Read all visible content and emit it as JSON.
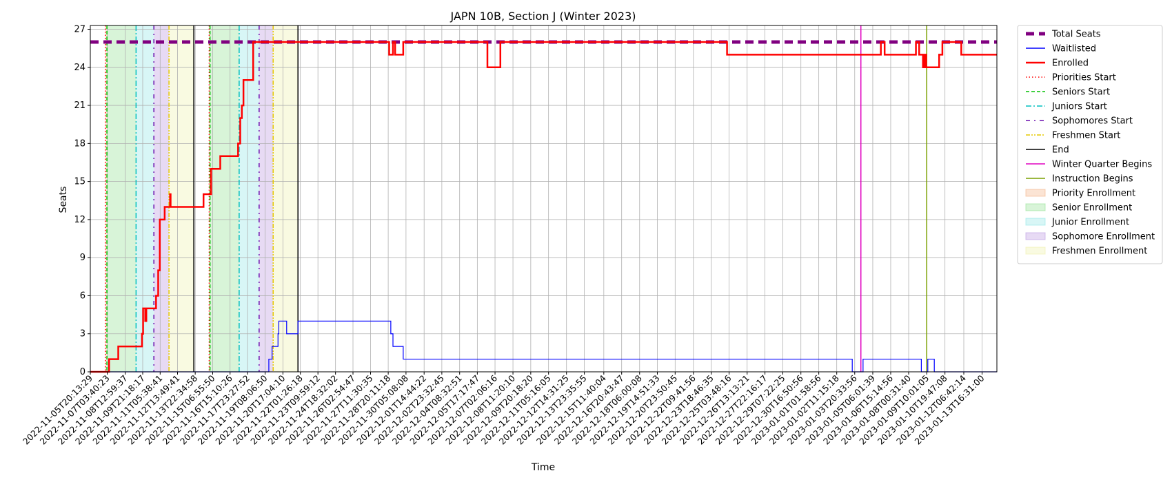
{
  "chart_data": {
    "type": "line",
    "title": "JAPN 10B, Section J (Winter 2023)",
    "xlabel": "Time",
    "ylabel": "Seats",
    "ylim": [
      0,
      27.3
    ],
    "yticks": [
      0,
      3,
      6,
      9,
      12,
      15,
      18,
      21,
      24,
      27
    ],
    "grid": true,
    "legend_position": "outside-right",
    "x_range": [
      "2022-11-05T20:13:29",
      "2023-01-14T20:00:00"
    ],
    "xtick_labels": [
      "2022-11-05T20:13:29",
      "2022-11-07T03:40:23",
      "2022-11-08T12:59:37",
      "2022-11-09T21:18:17",
      "2022-11-11T05:38:41",
      "2022-11-12T13:49:41",
      "2022-11-13T22:34:58",
      "2022-11-15T06:55:50",
      "2022-11-16T15:10:26",
      "2022-11-17T23:27:52",
      "2022-11-19T08:06:50",
      "2022-11-20T17:04:10",
      "2022-11-22T01:26:18",
      "2022-11-23T09:59:12",
      "2022-11-24T18:32:02",
      "2022-11-26T02:54:47",
      "2022-11-27T11:30:35",
      "2022-11-28T20:11:18",
      "2022-11-30T05:08:08",
      "2022-12-01T14:44:22",
      "2022-12-02T23:32:45",
      "2022-12-04T08:32:51",
      "2022-12-05T17:17:47",
      "2022-12-07T02:06:16",
      "2022-12-08T11:20:10",
      "2022-12-09T20:18:20",
      "2022-12-11T05:16:05",
      "2022-12-12T14:31:25",
      "2022-12-13T23:35:55",
      "2022-12-15T11:40:04",
      "2022-12-16T20:43:47",
      "2022-12-18T06:00:08",
      "2022-12-19T14:51:33",
      "2022-12-20T23:50:45",
      "2022-12-22T09:41:56",
      "2022-12-23T18:46:35",
      "2022-12-25T03:48:16",
      "2022-12-26T13:13:21",
      "2022-12-27T22:16:17",
      "2022-12-29T07:22:25",
      "2022-12-30T16:50:56",
      "2023-01-01T01:58:56",
      "2023-01-02T11:15:18",
      "2023-01-03T20:33:56",
      "2023-01-05T06:01:39",
      "2023-01-06T15:14:56",
      "2023-01-08T00:31:40",
      "2023-01-09T10:01:05",
      "2023-01-10T19:47:08",
      "2023-01-12T06:42:14",
      "2023-01-13T16:31:00"
    ],
    "series": [
      {
        "name": "Total Seats",
        "color": "#800080",
        "style": "dashed-thick",
        "x": [
          "2022-11-05T20:13:29",
          "2023-01-14T20:00:00"
        ],
        "y": [
          26,
          26
        ]
      },
      {
        "name": "Waitlisted",
        "color": "#0000ff",
        "style": "solid",
        "x": [
          "2022-11-05T20:13:29",
          "2022-11-19T14:00:00",
          "2022-11-19T15:00:00",
          "2022-11-19T21:00:00",
          "2022-11-20T00:00:00",
          "2022-11-20T08:00:00",
          "2022-11-20T08:30:00",
          "2022-11-20T09:30:00",
          "2022-11-21T00:00:00",
          "2022-11-21T00:30:00",
          "2022-11-21T21:00:00",
          "2022-11-21T22:00:00",
          "2022-11-29T01:00:00",
          "2022-11-29T05:00:00",
          "2022-11-30T00:00:00",
          "2023-01-03T04:00:00",
          "2023-01-03T16:00:00",
          "2023-01-04T00:00:00",
          "2023-01-04T12:00:00",
          "2023-01-08T21:00:00",
          "2023-01-09T00:00:00",
          "2023-01-09T10:00:00",
          "2023-01-09T12:00:00",
          "2023-01-09T20:00:00",
          "2023-01-10T00:00:00",
          "2023-01-14T20:00:00"
        ],
        "y": [
          0,
          0,
          1,
          2,
          2,
          3,
          3,
          4,
          3,
          3,
          4,
          4,
          3,
          2,
          1,
          1,
          0,
          0,
          1,
          1,
          0,
          0,
          1,
          1,
          0,
          0
        ]
      },
      {
        "name": "Enrolled",
        "color": "#ff0000",
        "style": "solid-thick",
        "x": [
          "2022-11-05T20:13:29",
          "2022-11-07T06:00:00",
          "2022-11-07T07:00:00",
          "2022-11-08T00:00:00",
          "2022-11-09T12:00:00",
          "2022-11-09T20:00:00",
          "2022-11-09T22:00:00",
          "2022-11-10T02:00:00",
          "2022-11-10T04:00:00",
          "2022-11-10T22:00:00",
          "2022-11-11T02:00:00",
          "2022-11-11T05:00:00",
          "2022-11-11T14:00:00",
          "2022-11-11T21:00:00",
          "2022-11-12T00:00:00",
          "2022-11-12T01:00:00",
          "2022-11-12T02:00:00",
          "2022-11-14T14:00:00",
          "2022-11-15T04:00:00",
          "2022-11-15T21:00:00",
          "2022-11-16T19:00:00",
          "2022-11-17T06:00:00",
          "2022-11-17T10:00:00",
          "2022-11-17T13:00:00",
          "2022-11-17T16:00:00",
          "2022-11-18T04:00:00",
          "2022-11-18T10:00:00",
          "2022-11-18T18:00:00",
          "2022-11-19T00:00:00",
          "2022-11-28T22:00:00",
          "2022-11-29T05:00:00",
          "2022-11-29T09:00:00",
          "2022-11-30T00:00:00",
          "2022-12-06T08:00:00",
          "2022-12-06T12:00:00",
          "2022-12-07T08:00:00",
          "2022-12-07T12:00:00",
          "2022-12-25T00:00:00",
          "2023-01-02T22:00:00",
          "2023-01-05T21:00:00",
          "2023-01-06T04:00:00",
          "2023-01-08T14:00:00",
          "2023-01-08T20:00:00",
          "2023-01-09T03:00:00",
          "2023-01-09T06:00:00",
          "2023-01-09T09:00:00",
          "2023-01-09T12:00:00",
          "2023-01-10T09:00:00",
          "2023-01-10T15:00:00",
          "2023-01-12T02:00:00",
          "2023-01-14T20:00:00"
        ],
        "y": [
          0,
          0,
          1,
          2,
          2,
          3,
          5,
          4,
          5,
          6,
          8,
          12,
          13,
          13,
          14,
          13,
          13,
          14,
          16,
          17,
          17,
          18,
          20,
          21,
          23,
          23,
          26,
          26,
          26,
          25,
          26,
          25,
          26,
          26,
          24,
          24,
          26,
          25,
          25,
          26,
          25,
          26,
          25,
          24,
          25,
          24,
          24,
          25,
          26,
          25,
          25
        ]
      }
    ],
    "vertical_markers": [
      {
        "name": "Priorities Start",
        "color": "#ff0000",
        "style": "dotted",
        "x": [
          "2022-11-07T00:00:00",
          "2022-11-15T00:30:00"
        ]
      },
      {
        "name": "Seniors Start",
        "color": "#00c000",
        "style": "dashed",
        "x": [
          "2022-11-07T03:00:00",
          "2022-11-15T02:00:00"
        ]
      },
      {
        "name": "Juniors Start",
        "color": "#00bfbf",
        "style": "dashdot",
        "x": [
          "2022-11-09T09:00:00",
          "2022-11-17T08:00:00"
        ]
      },
      {
        "name": "Sophomores Start",
        "color": "#6a0dad",
        "style": "loose-dashdot",
        "x": [
          "2022-11-10T18:00:00",
          "2022-11-18T21:00:00"
        ]
      },
      {
        "name": "Freshmen Start",
        "color": "#e6c800",
        "style": "dashdotdot",
        "x": [
          "2022-11-11T22:00:00",
          "2022-11-19T23:00:00"
        ]
      },
      {
        "name": "End",
        "color": "#000000",
        "style": "solid",
        "x": [
          "2022-11-13T20:00:00",
          "2022-11-21T21:00:00"
        ]
      },
      {
        "name": "Winter Quarter Begins",
        "color": "#e000c0",
        "style": "solid",
        "x": [
          "2023-01-04T08:00:00"
        ]
      },
      {
        "name": "Instruction Begins",
        "color": "#7aa000",
        "style": "solid",
        "x": [
          "2023-01-09T10:00:00"
        ]
      }
    ],
    "shaded_periods": [
      {
        "name": "Priority Enrollment",
        "color": "#f4b183",
        "ranges": [
          [
            "2022-11-07T00:00:00",
            "2022-11-07T03:00:00"
          ],
          [
            "2022-11-15T00:30:00",
            "2022-11-15T02:00:00"
          ]
        ]
      },
      {
        "name": "Senior Enrollment",
        "color": "#8fe08f",
        "ranges": [
          [
            "2022-11-07T03:00:00",
            "2022-11-09T09:00:00"
          ],
          [
            "2022-11-15T02:00:00",
            "2022-11-17T08:00:00"
          ]
        ]
      },
      {
        "name": "Junior Enrollment",
        "color": "#8ee6e6",
        "ranges": [
          [
            "2022-11-09T09:00:00",
            "2022-11-10T18:00:00"
          ],
          [
            "2022-11-17T08:00:00",
            "2022-11-18T21:00:00"
          ]
        ]
      },
      {
        "name": "Sophomore Enrollment",
        "color": "#b996e0",
        "ranges": [
          [
            "2022-11-10T18:00:00",
            "2022-11-11T22:00:00"
          ],
          [
            "2022-11-18T21:00:00",
            "2022-11-19T23:00:00"
          ]
        ]
      },
      {
        "name": "Freshmen Enrollment",
        "color": "#eef0a8",
        "ranges": [
          [
            "2022-11-11T22:00:00",
            "2022-11-13T20:00:00"
          ],
          [
            "2022-11-19T23:00:00",
            "2022-11-21T21:00:00"
          ]
        ]
      }
    ]
  }
}
